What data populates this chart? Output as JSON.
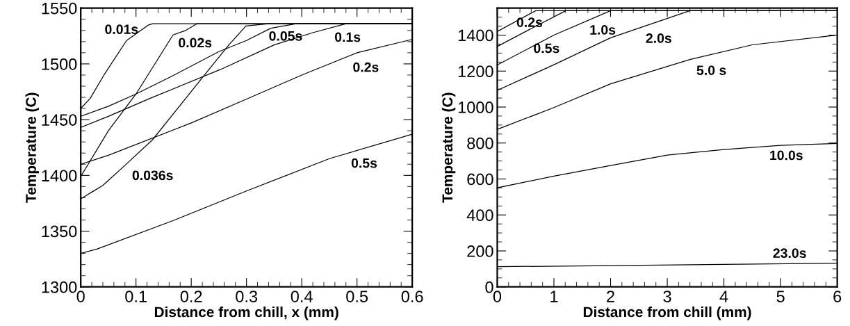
{
  "chart_data": [
    {
      "type": "line",
      "xlabel": "Distance from chill, x (mm)",
      "ylabel": "Temperature (C)",
      "xlim": [
        0,
        0.6
      ],
      "ylim": [
        1300,
        1550
      ],
      "xticks": [
        0,
        0.1,
        0.2,
        0.3,
        0.4,
        0.5,
        0.6
      ],
      "yticks": [
        1300,
        1350,
        1400,
        1450,
        1500,
        1550
      ],
      "grid": false,
      "marker": "none",
      "line_style": "solid",
      "series": [
        {
          "color": "#000000",
          "x": [
            0,
            0.017,
            0.042,
            0.083,
            0.123,
            0.13,
            0.6
          ],
          "values": [
            1460,
            1469,
            1490,
            1521,
            1535,
            1536,
            1536
          ]
        },
        {
          "color": "#000000",
          "x": [
            0,
            0.05,
            0.1,
            0.167,
            0.19,
            0.21,
            0.6
          ],
          "values": [
            1399,
            1440,
            1473,
            1526,
            1530,
            1536,
            1536
          ]
        },
        {
          "color": "#000000",
          "x": [
            0,
            0.02,
            0.04,
            0.08,
            0.13,
            0.224,
            0.268,
            0.299,
            0.34,
            0.6
          ],
          "values": [
            1379,
            1385,
            1391,
            1409,
            1432,
            1490,
            1517,
            1534,
            1536,
            1536
          ]
        },
        {
          "color": "#000000",
          "x": [
            0,
            0.05,
            0.1,
            0.169,
            0.25,
            0.3,
            0.344,
            0.39,
            0.6
          ],
          "values": [
            1453,
            1462,
            1473,
            1490,
            1511,
            1521,
            1532,
            1536,
            1536
          ]
        },
        {
          "color": "#000000",
          "x": [
            0,
            0.05,
            0.125,
            0.253,
            0.35,
            0.42,
            0.48,
            0.6
          ],
          "values": [
            1443,
            1453,
            1469,
            1495,
            1517,
            1528,
            1536,
            1536
          ]
        },
        {
          "color": "#000000",
          "x": [
            0,
            0.05,
            0.2,
            0.298,
            0.4,
            0.5,
            0.6
          ],
          "values": [
            1410,
            1418,
            1447,
            1468,
            1490,
            1510,
            1522
          ]
        },
        {
          "color": "#000000",
          "x": [
            0,
            0.03,
            0.17,
            0.3,
            0.45,
            0.6
          ],
          "values": [
            1330,
            1334,
            1360,
            1386,
            1415,
            1437
          ]
        }
      ],
      "annotations": [
        "0.01s",
        "0.02s",
        "0.036s",
        "0.05s",
        "0.1s",
        "0.2s",
        "0.5s"
      ]
    },
    {
      "type": "line",
      "xlabel": "Distance from chill (mm)",
      "ylabel": "Temperature (C)",
      "xlim": [
        0,
        6
      ],
      "ylim": [
        0,
        1550
      ],
      "xticks": [
        0,
        1,
        2,
        3,
        4,
        5,
        6
      ],
      "yticks": [
        0,
        200,
        400,
        600,
        800,
        1000,
        1200,
        1400
      ],
      "grid": false,
      "marker": "none",
      "line_style": "solid",
      "series": [
        {
          "color": "#000000",
          "x": [
            0,
            0.68,
            6
          ],
          "values": [
            1420,
            1536,
            1536
          ]
        },
        {
          "color": "#000000",
          "x": [
            0,
            0.5,
            1.21,
            6
          ],
          "values": [
            1337,
            1420,
            1536,
            1536
          ]
        },
        {
          "color": "#000000",
          "x": [
            0,
            1,
            2,
            6
          ],
          "values": [
            1234,
            1400,
            1536,
            1536
          ]
        },
        {
          "color": "#000000",
          "x": [
            0,
            1.02,
            2,
            3.4,
            6
          ],
          "values": [
            1093,
            1238,
            1385,
            1536,
            1536
          ]
        },
        {
          "color": "#000000",
          "x": [
            0,
            1,
            2,
            3.4,
            4.5,
            6
          ],
          "values": [
            876,
            997,
            1129,
            1264,
            1346,
            1400
          ]
        },
        {
          "color": "#000000",
          "x": [
            0,
            1,
            2,
            3,
            4,
            5,
            6
          ],
          "values": [
            551,
            616,
            675,
            733,
            764,
            787,
            798
          ]
        },
        {
          "color": "#000000",
          "x": [
            0,
            6
          ],
          "values": [
            112,
            132
          ]
        }
      ],
      "annotations": [
        "0.2s",
        "0.5s",
        "1.0s",
        "2.0s",
        "5.0 s",
        "10.0s",
        "23.0s"
      ]
    }
  ]
}
